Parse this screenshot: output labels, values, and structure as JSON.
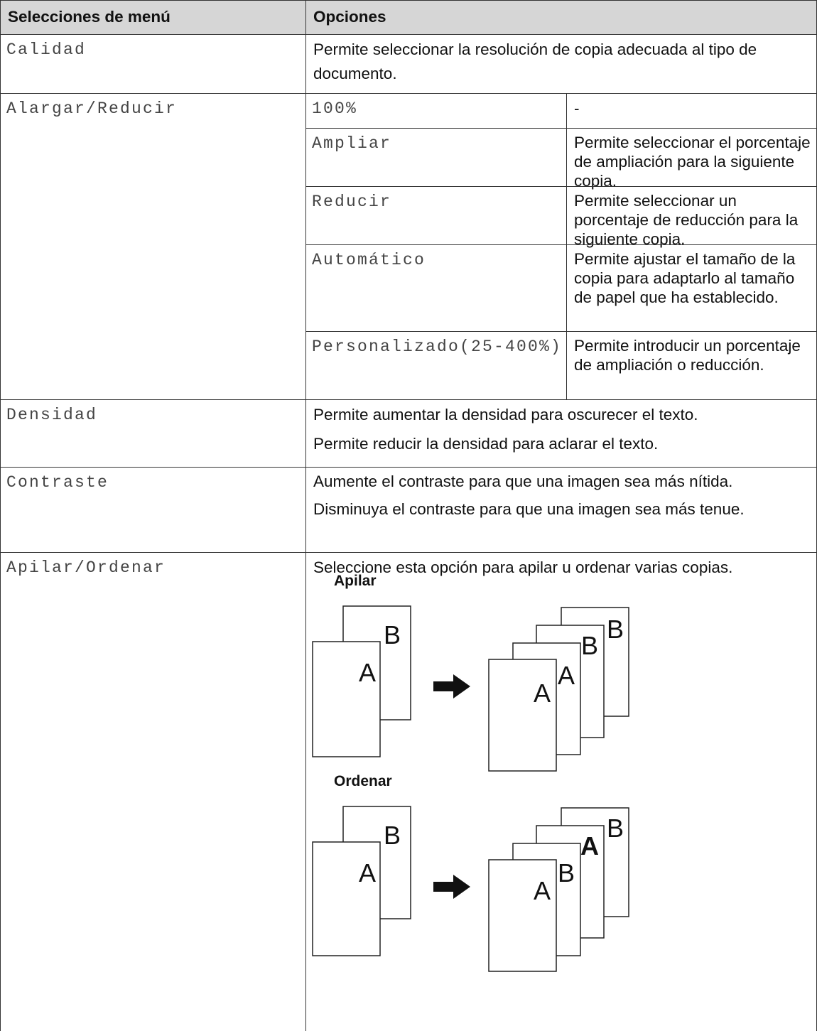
{
  "table": {
    "header": [
      "Selecciones de menú",
      "Opciones"
    ],
    "rows": [
      {
        "menu": "Calidad",
        "options": [
          "Permite seleccionar la resolución de copia adecuada al tipo de documento."
        ]
      },
      {
        "menu": "Alargar/Reducir",
        "suboptions": [
          [
            "100%",
            "-"
          ],
          [
            "Ampliar",
            "Permite seleccionar el porcentaje de ampliación para la siguiente copia."
          ],
          [
            "Reducir",
            "Permite seleccionar un porcentaje de reducción para la siguiente copia."
          ],
          [
            "Automático",
            "Permite ajustar el tamaño de la copia para adaptarlo al tamaño de papel que ha establecido."
          ],
          [
            "Personalizado(25-400%)",
            "Permite introducir un porcentaje de ampliación o reducción."
          ]
        ]
      },
      {
        "menu": "Densidad",
        "options": [
          "Permite aumentar la densidad para oscurecer el texto.",
          "Permite reducir la densidad para aclarar el texto."
        ]
      },
      {
        "menu": "Contraste",
        "options": [
          "Aumente el contraste para que una imagen sea más nítida.",
          "Disminuya el contraste para que una imagen sea más tenue."
        ]
      },
      {
        "menu": "Apilar/Ordenar",
        "options": [
          "Seleccione esta opción para apilar u ordenar varias copias."
        ],
        "diagrams": [
          {
            "label": "Apilar",
            "before": [
              "B",
              "A"
            ],
            "after": [
              "B",
              "B",
              "A",
              "A"
            ]
          },
          {
            "label": "Ordenar",
            "before": [
              "B",
              "A"
            ],
            "after": [
              "B",
              "A",
              "B",
              "A"
            ]
          }
        ]
      }
    ]
  }
}
